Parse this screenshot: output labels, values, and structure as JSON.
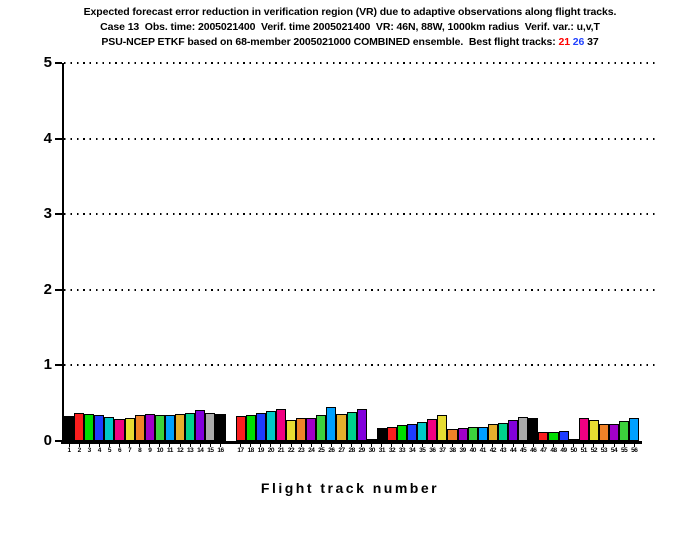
{
  "canvas": {
    "background": "#ffffff"
  },
  "title": {
    "line1": "Expected forecast error reduction in verification region (VR) due to adaptive observations along flight tracks.",
    "line2": "Case 13  Obs. time: 2005021400  Verif. time 2005021400  VR: 46N, 88W, 1000km radius  Verif. var.: u,v,T",
    "line3_prefix": "PSU-NCEP ETKF based on 68-member 2005021000 COMBINED ensemble.  Best flight tracks: ",
    "best_tracks": [
      {
        "label": "21",
        "color": "#ff0000"
      },
      {
        "label": "26",
        "color": "#2142ff"
      },
      {
        "label": "37",
        "color": "#000000"
      }
    ]
  },
  "chart_data": {
    "type": "bar",
    "title": "Expected forecast error reduction in verification region (VR) due to adaptive observations along flight tracks.",
    "xlabel": "Flight track number",
    "ylabel": "",
    "ylim": [
      0,
      5
    ],
    "yticks": [
      0,
      1,
      2,
      3,
      4,
      5
    ],
    "grid": "horizontal dotted black lines at each integer y value, dotted top border at y=5",
    "legend": "none",
    "categories": [
      1,
      2,
      3,
      4,
      5,
      6,
      7,
      8,
      9,
      10,
      11,
      12,
      13,
      14,
      15,
      16,
      17,
      18,
      19,
      20,
      21,
      22,
      23,
      24,
      25,
      26,
      27,
      28,
      29,
      30,
      31,
      32,
      33,
      34,
      35,
      36,
      37,
      38,
      39,
      40,
      41,
      42,
      43,
      44,
      45,
      46,
      47,
      48,
      49,
      50,
      51,
      52,
      53,
      54,
      55,
      56
    ],
    "values": [
      0.33,
      0.37,
      0.36,
      0.35,
      0.32,
      0.29,
      0.31,
      0.34,
      0.36,
      0.34,
      0.35,
      0.36,
      0.37,
      0.41,
      0.37,
      0.36,
      0.33,
      0.35,
      0.37,
      0.4,
      0.43,
      0.28,
      0.3,
      0.31,
      0.34,
      0.45,
      0.36,
      0.39,
      0.43,
      0.02,
      0.17,
      0.19,
      0.21,
      0.23,
      0.25,
      0.29,
      0.35,
      0.16,
      0.17,
      0.18,
      0.19,
      0.22,
      0.24,
      0.28,
      0.32,
      0.31,
      0.12,
      0.12,
      0.13,
      0.02,
      0.3,
      0.28,
      0.22,
      0.23,
      0.26,
      0.3
    ],
    "palette_cycle": [
      "#000000",
      "#fa1e1e",
      "#00dc00",
      "#1e3cff",
      "#00c8c8",
      "#f00082",
      "#e6dc32",
      "#f08228",
      "#a000c8",
      "#3cd23c",
      "#00a0ff",
      "#e6af2d",
      "#00d28c",
      "#8200dc",
      "#aaaaaa"
    ],
    "color_rule": "bar for track n is filled with palette_cycle[(n-1) mod 15] and outlined in black",
    "highlighted_best_tracks": [
      21,
      26,
      37
    ],
    "slot_gap_after_track": 16
  }
}
